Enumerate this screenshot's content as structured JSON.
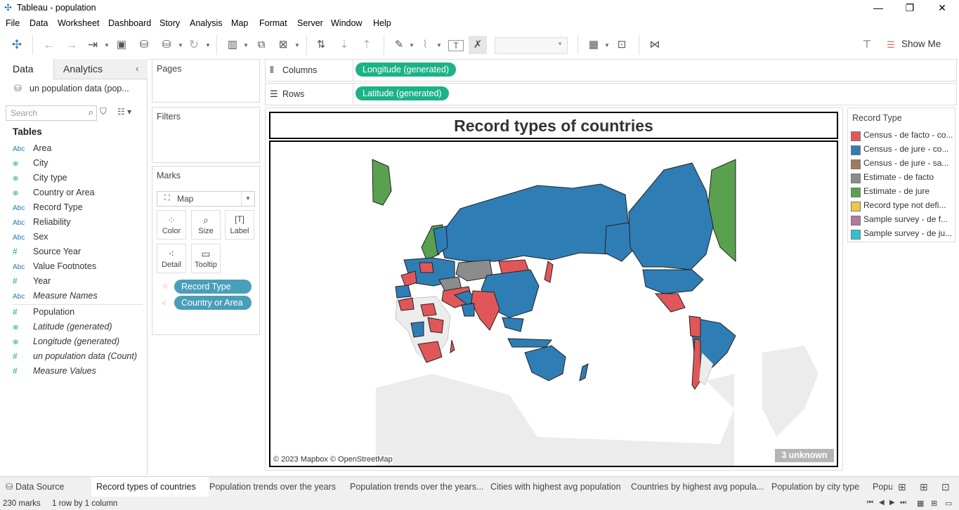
{
  "window": {
    "title": "Tableau - population"
  },
  "menu": [
    "File",
    "Data",
    "Worksheet",
    "Dashboard",
    "Story",
    "Analysis",
    "Map",
    "Format",
    "Server",
    "Window",
    "Help"
  ],
  "toolbar": {
    "show_me": "Show Me"
  },
  "left_pane": {
    "tab_data": "Data",
    "tab_analytics": "Analytics",
    "datasource": "un population data (pop...",
    "search_placeholder": "Search",
    "tables_header": "Tables",
    "fields": [
      {
        "type": "Abc",
        "name": "Area"
      },
      {
        "type": "geo",
        "name": "City"
      },
      {
        "type": "geo",
        "name": "City type"
      },
      {
        "type": "geo",
        "name": "Country or Area"
      },
      {
        "type": "Abc",
        "name": "Record Type"
      },
      {
        "type": "Abc",
        "name": "Reliability"
      },
      {
        "type": "Abc",
        "name": "Sex"
      },
      {
        "type": "#",
        "name": "Source Year"
      },
      {
        "type": "Abc",
        "name": "Value Footnotes"
      },
      {
        "type": "#",
        "name": "Year"
      },
      {
        "type": "Abc",
        "name": "Measure Names"
      },
      {
        "type": "#",
        "name": "Population"
      },
      {
        "type": "geo",
        "name": "Latitude (generated)"
      },
      {
        "type": "geo",
        "name": "Longitude (generated)"
      },
      {
        "type": "#",
        "name": "un population data (Count)"
      },
      {
        "type": "#",
        "name": "Measure Values"
      }
    ]
  },
  "cards": {
    "pages": "Pages",
    "filters": "Filters",
    "marks": "Marks",
    "mark_type": "Map",
    "buttons": {
      "color": "Color",
      "size": "Size",
      "label": "Label",
      "detail": "Detail",
      "tooltip": "Tooltip"
    },
    "pills": {
      "color_pill": "Record Type",
      "detail_pill": "Country or Area"
    }
  },
  "shelves": {
    "columns_label": "Columns",
    "columns_pill": "Longitude (generated)",
    "rows_label": "Rows",
    "rows_pill": "Latitude (generated)"
  },
  "viz": {
    "title": "Record types of countries",
    "copyright": "© 2023 Mapbox © OpenStreetMap",
    "unknown": "3 unknown"
  },
  "legend": {
    "title": "Record Type",
    "items": [
      {
        "label": "Census - de facto - co...",
        "color": "#e15759"
      },
      {
        "label": "Census - de jure - co...",
        "color": "#2f7db5"
      },
      {
        "label": "Census - de jure - sa...",
        "color": "#a07a5e"
      },
      {
        "label": "Estimate - de facto",
        "color": "#8c8c8c"
      },
      {
        "label": "Estimate - de jure",
        "color": "#59a14f"
      },
      {
        "label": "Record type not defi...",
        "color": "#edc948"
      },
      {
        "label": "Sample survey - de f...",
        "color": "#b07aa1"
      },
      {
        "label": "Sample survey - de ju...",
        "color": "#2ec4cf"
      }
    ]
  },
  "sheet_tabs": {
    "data_source": "Data Source",
    "tabs": [
      "Record types of countries",
      "Population trends over the years",
      "Population trends over the years...",
      "Cities with highest avg population",
      "Countries by highest avg popula...",
      "Population by city type",
      "Popu"
    ]
  },
  "status": {
    "marks": "230 marks",
    "rows": "1 row by 1 column"
  }
}
